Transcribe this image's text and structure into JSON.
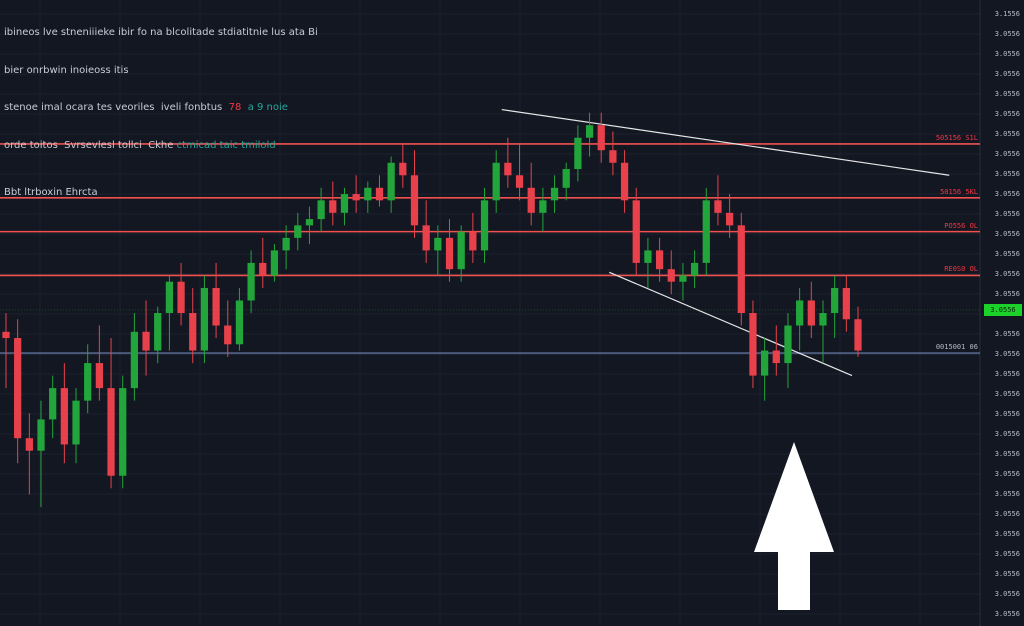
{
  "header": {
    "line1": "ibineos lve stneniiieke ibir fo na blcolitade stdiatitnie lus ata Bi",
    "line2": "bier onrbwin inoieoss itis",
    "line3a": "stenoe imal ocara tes veoriles  iveli fonbtus  ",
    "line3b": "78",
    "line3c": "  a 9 noie",
    "line4a": "orde toitos  Svrsevlesl tollci  Ckhe ",
    "line4b": "ctmicad taic tmilold",
    "subtitle": "Bbt ltrboxin Ehrcta"
  },
  "colors": {
    "up": "#22a53a",
    "down": "#e8414c",
    "resistance": "#f0514f",
    "support": "#4a5a7a",
    "trendline": "#e6e6e6",
    "arrow": "#ffffff",
    "last_price_tag": "#1bd12a"
  },
  "chart_data": {
    "type": "candlestick",
    "y_ticks": [
      "3.1556",
      "3.0556",
      "3.0556",
      "3.0556",
      "3.0556",
      "3.0556",
      "3.0556",
      "3.0556",
      "3.0556",
      "3.0556",
      "3.0556",
      "3.0556",
      "3.0556",
      "3.0556",
      "3.0556",
      "3.0556",
      "3.0556",
      "3.0556",
      "3.0556",
      "3.0556",
      "3.0556",
      "3.0556",
      "3.0556",
      "3.0556",
      "3.0556",
      "3.0556",
      "3.0556",
      "3.0556",
      "3.0556",
      "3.0556",
      "3.0556"
    ],
    "ylim": [
      0,
      100
    ],
    "levels": [
      {
        "label": "505156 S1L",
        "value": 77.0,
        "kind": "resistance"
      },
      {
        "label": "50156 5KL",
        "value": 68.4,
        "kind": "resistance"
      },
      {
        "label": "PO556 OL",
        "value": 63.0,
        "kind": "resistance"
      },
      {
        "label": "RE0S0 OL",
        "value": 56.0,
        "kind": "resistance"
      },
      {
        "label": "0015001 06",
        "value": 43.6,
        "kind": "support"
      }
    ],
    "last_price": {
      "label": "3.0556",
      "value": 50.5
    },
    "trendlines": [
      {
        "x1": 0.49,
        "y1": 82.5,
        "x2": 0.927,
        "y2": 72.0
      },
      {
        "x1": 0.595,
        "y1": 56.5,
        "x2": 0.832,
        "y2": 40.0
      }
    ],
    "candles": [
      {
        "o": 47,
        "h": 50,
        "l": 38,
        "c": 46
      },
      {
        "o": 46,
        "h": 49,
        "l": 26,
        "c": 30
      },
      {
        "o": 30,
        "h": 34,
        "l": 21,
        "c": 28
      },
      {
        "o": 28,
        "h": 36,
        "l": 19,
        "c": 33
      },
      {
        "o": 33,
        "h": 40,
        "l": 30,
        "c": 38
      },
      {
        "o": 38,
        "h": 42,
        "l": 26,
        "c": 29
      },
      {
        "o": 29,
        "h": 38,
        "l": 26,
        "c": 36
      },
      {
        "o": 36,
        "h": 45,
        "l": 34,
        "c": 42
      },
      {
        "o": 42,
        "h": 48,
        "l": 36,
        "c": 38
      },
      {
        "o": 38,
        "h": 46,
        "l": 22,
        "c": 24
      },
      {
        "o": 24,
        "h": 40,
        "l": 22,
        "c": 38
      },
      {
        "o": 38,
        "h": 50,
        "l": 36,
        "c": 47
      },
      {
        "o": 47,
        "h": 52,
        "l": 40,
        "c": 44
      },
      {
        "o": 44,
        "h": 51,
        "l": 42,
        "c": 50
      },
      {
        "o": 50,
        "h": 56,
        "l": 44,
        "c": 55
      },
      {
        "o": 55,
        "h": 58,
        "l": 48,
        "c": 50
      },
      {
        "o": 50,
        "h": 54,
        "l": 42,
        "c": 44
      },
      {
        "o": 44,
        "h": 56,
        "l": 42,
        "c": 54
      },
      {
        "o": 54,
        "h": 58,
        "l": 46,
        "c": 48
      },
      {
        "o": 48,
        "h": 52,
        "l": 43,
        "c": 45
      },
      {
        "o": 45,
        "h": 54,
        "l": 44,
        "c": 52
      },
      {
        "o": 52,
        "h": 60,
        "l": 50,
        "c": 58
      },
      {
        "o": 58,
        "h": 62,
        "l": 54,
        "c": 56
      },
      {
        "o": 56,
        "h": 61,
        "l": 55,
        "c": 60
      },
      {
        "o": 60,
        "h": 64,
        "l": 57,
        "c": 62
      },
      {
        "o": 62,
        "h": 66,
        "l": 60,
        "c": 64
      },
      {
        "o": 64,
        "h": 67,
        "l": 61,
        "c": 65
      },
      {
        "o": 65,
        "h": 70,
        "l": 63,
        "c": 68
      },
      {
        "o": 68,
        "h": 71,
        "l": 64,
        "c": 66
      },
      {
        "o": 66,
        "h": 70,
        "l": 64,
        "c": 69
      },
      {
        "o": 69,
        "h": 72,
        "l": 66,
        "c": 68
      },
      {
        "o": 68,
        "h": 71,
        "l": 66,
        "c": 70
      },
      {
        "o": 70,
        "h": 72,
        "l": 67,
        "c": 68
      },
      {
        "o": 68,
        "h": 75,
        "l": 66,
        "c": 74
      },
      {
        "o": 74,
        "h": 77,
        "l": 70,
        "c": 72
      },
      {
        "o": 72,
        "h": 76,
        "l": 62,
        "c": 64
      },
      {
        "o": 64,
        "h": 68,
        "l": 58,
        "c": 60
      },
      {
        "o": 60,
        "h": 64,
        "l": 56,
        "c": 62
      },
      {
        "o": 62,
        "h": 65,
        "l": 55,
        "c": 57
      },
      {
        "o": 57,
        "h": 64,
        "l": 55,
        "c": 63
      },
      {
        "o": 63,
        "h": 66,
        "l": 58,
        "c": 60
      },
      {
        "o": 60,
        "h": 70,
        "l": 58,
        "c": 68
      },
      {
        "o": 68,
        "h": 76,
        "l": 66,
        "c": 74
      },
      {
        "o": 74,
        "h": 78,
        "l": 70,
        "c": 72
      },
      {
        "o": 72,
        "h": 77,
        "l": 68,
        "c": 70
      },
      {
        "o": 70,
        "h": 74,
        "l": 64,
        "c": 66
      },
      {
        "o": 66,
        "h": 70,
        "l": 63,
        "c": 68
      },
      {
        "o": 68,
        "h": 72,
        "l": 66,
        "c": 70
      },
      {
        "o": 70,
        "h": 74,
        "l": 68,
        "c": 73
      },
      {
        "o": 73,
        "h": 80,
        "l": 71,
        "c": 78
      },
      {
        "o": 78,
        "h": 82,
        "l": 75,
        "c": 80
      },
      {
        "o": 80,
        "h": 82,
        "l": 74,
        "c": 76
      },
      {
        "o": 76,
        "h": 79,
        "l": 72,
        "c": 74
      },
      {
        "o": 74,
        "h": 76,
        "l": 66,
        "c": 68
      },
      {
        "o": 68,
        "h": 70,
        "l": 56,
        "c": 58
      },
      {
        "o": 58,
        "h": 62,
        "l": 54,
        "c": 60
      },
      {
        "o": 60,
        "h": 62,
        "l": 55,
        "c": 57
      },
      {
        "o": 57,
        "h": 60,
        "l": 53,
        "c": 55
      },
      {
        "o": 55,
        "h": 58,
        "l": 52,
        "c": 56
      },
      {
        "o": 56,
        "h": 60,
        "l": 54,
        "c": 58
      },
      {
        "o": 58,
        "h": 70,
        "l": 56,
        "c": 68
      },
      {
        "o": 68,
        "h": 72,
        "l": 64,
        "c": 66
      },
      {
        "o": 66,
        "h": 69,
        "l": 62,
        "c": 64
      },
      {
        "o": 64,
        "h": 66,
        "l": 48,
        "c": 50
      },
      {
        "o": 50,
        "h": 52,
        "l": 38,
        "c": 40
      },
      {
        "o": 40,
        "h": 46,
        "l": 36,
        "c": 44
      },
      {
        "o": 44,
        "h": 48,
        "l": 40,
        "c": 42
      },
      {
        "o": 42,
        "h": 50,
        "l": 38,
        "c": 48
      },
      {
        "o": 48,
        "h": 54,
        "l": 44,
        "c": 52
      },
      {
        "o": 52,
        "h": 55,
        "l": 46,
        "c": 48
      },
      {
        "o": 48,
        "h": 52,
        "l": 42,
        "c": 50
      },
      {
        "o": 50,
        "h": 56,
        "l": 46,
        "c": 54
      },
      {
        "o": 54,
        "h": 56,
        "l": 47,
        "c": 49
      },
      {
        "o": 49,
        "h": 51,
        "l": 43,
        "c": 44
      }
    ]
  }
}
